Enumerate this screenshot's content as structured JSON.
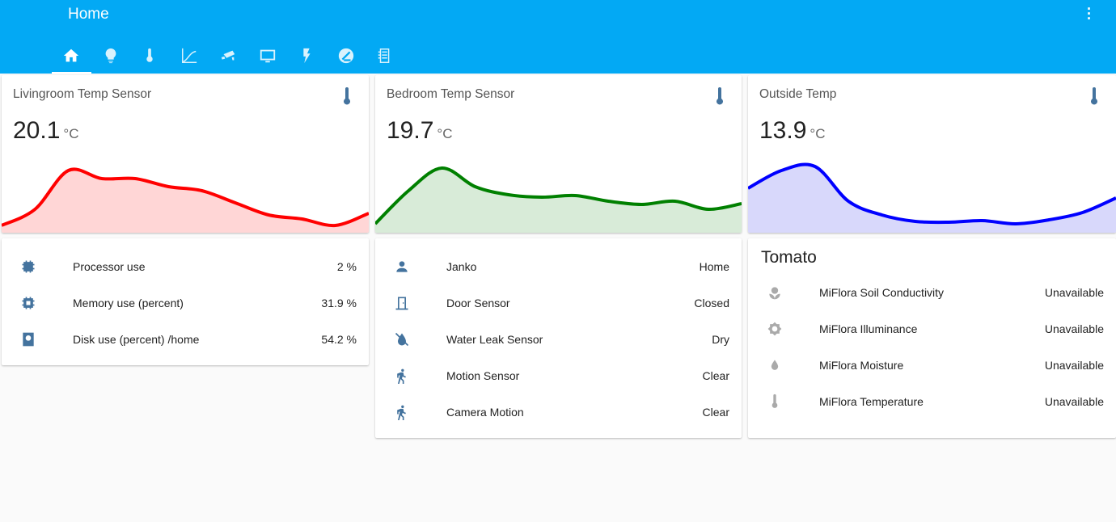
{
  "header": {
    "title": "Home",
    "tabs": [
      "home-icon",
      "lightbulb-icon",
      "thermometer-icon",
      "chart-line-icon",
      "cctv-icon",
      "monitor-icon",
      "flash-icon",
      "zwave-icon",
      "radiator-icon"
    ]
  },
  "sensors": [
    {
      "name": "Livingroom Temp Sensor",
      "value": "20.1",
      "unit": "°C",
      "color": "#ff0000",
      "fill": "#ffd6d6",
      "history_levels": [
        9,
        29,
        77,
        67,
        67,
        57,
        52,
        37,
        22,
        17,
        9,
        24
      ]
    },
    {
      "name": "Bedroom Temp Sensor",
      "value": "19.7",
      "unit": "°C",
      "color": "#008000",
      "fill": "#d8ebd8",
      "history_levels": [
        11,
        52,
        80,
        57,
        47,
        44,
        46,
        39,
        35,
        39,
        29,
        36
      ]
    },
    {
      "name": "Outside Temp",
      "value": "13.9",
      "unit": "°C",
      "color": "#0000ff",
      "fill": "#d8d8fb",
      "history_levels": [
        55,
        77,
        82,
        39,
        22,
        14,
        13,
        15,
        11,
        16,
        25,
        43
      ]
    }
  ],
  "system": [
    {
      "icon": "cpu-32bit-icon",
      "label": "Processor use",
      "value": "2 %"
    },
    {
      "icon": "memory-icon",
      "label": "Memory use (percent)",
      "value": "31.9 %"
    },
    {
      "icon": "harddisk-icon",
      "label": "Disk use (percent) /home",
      "value": "54.2 %"
    }
  ],
  "home": [
    {
      "icon": "account-icon",
      "label": "Janko",
      "value": "Home"
    },
    {
      "icon": "door-icon",
      "label": "Door Sensor",
      "value": "Closed"
    },
    {
      "icon": "water-off-icon",
      "label": "Water Leak Sensor",
      "value": "Dry"
    },
    {
      "icon": "walk-icon",
      "label": "Motion Sensor",
      "value": "Clear"
    },
    {
      "icon": "walk-icon",
      "label": "Camera Motion",
      "value": "Clear"
    }
  ],
  "tomato": {
    "title": "Tomato",
    "rows": [
      {
        "icon": "flower-icon",
        "label": "MiFlora Soil Conductivity",
        "value": "Unavailable"
      },
      {
        "icon": "brightness-icon",
        "label": "MiFlora Illuminance",
        "value": "Unavailable"
      },
      {
        "icon": "water-percent-icon",
        "label": "MiFlora Moisture",
        "value": "Unavailable"
      },
      {
        "icon": "thermometer-icon",
        "label": "MiFlora Temperature",
        "value": "Unavailable"
      }
    ]
  }
}
